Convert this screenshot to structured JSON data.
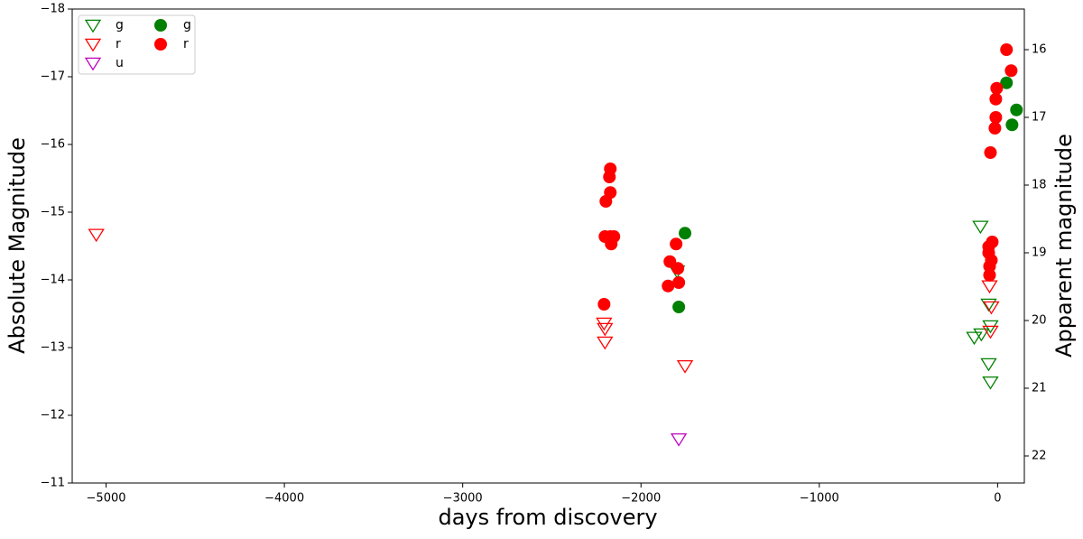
{
  "chart_data": {
    "type": "scatter",
    "xlabel": "days from discovery",
    "ylabel": "Absolute Magnitude",
    "y2label": "Apparent magnitude",
    "xlim": [
      -5190,
      150
    ],
    "ylim": [
      -11,
      -18
    ],
    "y2lim": [
      22.4,
      15.4
    ],
    "xticks": [
      {
        "value": -5000,
        "label": "−5000"
      },
      {
        "value": -4000,
        "label": "−4000"
      },
      {
        "value": -3000,
        "label": "−3000"
      },
      {
        "value": -2000,
        "label": "−2000"
      },
      {
        "value": -1000,
        "label": "−1000"
      },
      0
    ],
    "yticks": [
      {
        "value": -18,
        "label": "−18"
      },
      {
        "value": -17,
        "label": "−17"
      },
      {
        "value": -16,
        "label": "−16"
      },
      {
        "value": -15,
        "label": "−15"
      },
      {
        "value": -14,
        "label": "−14"
      },
      {
        "value": -13,
        "label": "−13"
      },
      {
        "value": -12,
        "label": "−12"
      },
      {
        "value": -11,
        "label": "−11"
      }
    ],
    "y2ticks": [
      16,
      17,
      18,
      19,
      20,
      21,
      22
    ],
    "legend": "upper left",
    "series": [
      {
        "name": "g",
        "color": "#008000",
        "marker": "triangle-down-open",
        "x": [
          -96,
          -131,
          -91,
          -50,
          -40,
          -50,
          -40,
          -1798
        ],
        "values": [
          -14.79,
          -13.15,
          -13.2,
          -13.64,
          -13.32,
          -12.76,
          -12.49,
          -14.13
        ]
      },
      {
        "name": "r",
        "color": "#ff0000",
        "marker": "triangle-down-open",
        "x": [
          -5055,
          -2207,
          -2202,
          -2202,
          -1753,
          -45,
          -35,
          -40
        ],
        "values": [
          -14.67,
          -13.36,
          -13.28,
          -13.08,
          -12.73,
          -13.91,
          -13.6,
          -13.24
        ]
      },
      {
        "name": "u",
        "color": "#bf00bf",
        "marker": "triangle-down-open",
        "x": [
          -1788
        ],
        "values": [
          -11.65
        ]
      },
      {
        "name": "g",
        "color": "#008000",
        "marker": "circle",
        "x": [
          -1753,
          -1788,
          50,
          106,
          81
        ],
        "values": [
          -14.69,
          -13.6,
          -16.91,
          -16.51,
          -16.29
        ]
      },
      {
        "name": "r",
        "color": "#ff0000",
        "marker": "circle",
        "x": [
          -2172,
          -2177,
          -2172,
          -2197,
          -2202,
          -2172,
          -2152,
          -2167,
          -2207,
          -1838,
          -1803,
          -1793,
          -1848,
          -1788,
          50,
          76,
          -5,
          -10,
          -10,
          -15,
          -40,
          -30,
          -50,
          -50,
          -35,
          -45,
          -45
        ],
        "values": [
          -15.64,
          -15.52,
          -15.29,
          -15.16,
          -14.64,
          -14.64,
          -14.64,
          -14.53,
          -13.64,
          -14.27,
          -14.53,
          -14.17,
          -13.91,
          -13.96,
          -17.4,
          -17.09,
          -16.83,
          -16.67,
          -16.4,
          -16.24,
          -15.88,
          -14.56,
          -14.49,
          -14.4,
          -14.29,
          -14.2,
          -14.07
        ]
      }
    ]
  }
}
